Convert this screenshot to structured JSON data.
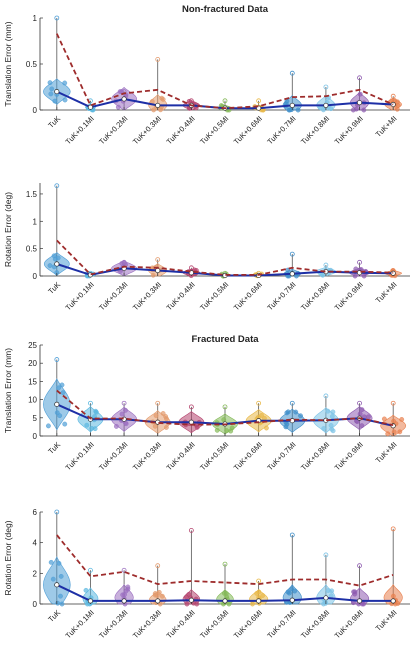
{
  "chart_data": [
    {
      "type": "violin",
      "title": "Non-fractured Data",
      "ylabel": "Translation Error (mm)",
      "xlabel": "",
      "ylim": [
        0,
        1
      ],
      "yticks": [
        0,
        0.5,
        1
      ],
      "grid": false,
      "categories": [
        "TuK",
        "TuK+0.1MI",
        "TuK+0.2MI",
        "TuK+0.3MI",
        "TuK+0.4MI",
        "TuK+0.5MI",
        "TuK+0.6MI",
        "TuK+0.7MI",
        "TuK+0.8MI",
        "TuK+0.9MI",
        "TuK+MI"
      ],
      "series": [
        {
          "style": "solid-blue",
          "values": [
            0.2,
            0.03,
            0.12,
            0.05,
            0.05,
            0.02,
            0.02,
            0.05,
            0.05,
            0.08,
            0.06
          ]
        },
        {
          "style": "dashed-red",
          "values": [
            0.83,
            0.05,
            0.18,
            0.22,
            0.05,
            0.02,
            0.04,
            0.14,
            0.15,
            0.22,
            0.06
          ]
        }
      ],
      "whisker_max": [
        1.0,
        0.1,
        0.2,
        0.55,
        0.1,
        0.1,
        0.1,
        0.4,
        0.25,
        0.35,
        0.15
      ],
      "violin_width": [
        0.8,
        0.3,
        0.75,
        0.55,
        0.5,
        0.4,
        0.4,
        0.55,
        0.55,
        0.55,
        0.5
      ],
      "violin_height": [
        0.2,
        0.06,
        0.18,
        0.16,
        0.08,
        0.05,
        0.05,
        0.15,
        0.15,
        0.16,
        0.1
      ]
    },
    {
      "type": "violin",
      "title": "",
      "ylabel": "Rotation Error (deg)",
      "xlabel": "",
      "ylim": [
        0,
        1.7
      ],
      "yticks": [
        0,
        0.5,
        1,
        1.5
      ],
      "grid": false,
      "categories": [
        "TuK",
        "TuK+0.1MI",
        "TuK+0.2MI",
        "TuK+0.3MI",
        "TuK+0.4MI",
        "TuK+0.5MI",
        "TuK+0.6MI",
        "TuK+0.7MI",
        "TuK+0.8MI",
        "TuK+0.9MI",
        "TuK+MI"
      ],
      "series": [
        {
          "style": "solid-blue",
          "values": [
            0.22,
            0.02,
            0.14,
            0.1,
            0.06,
            0.01,
            0.01,
            0.04,
            0.08,
            0.06,
            0.05
          ]
        },
        {
          "style": "dashed-red",
          "values": [
            0.65,
            0.03,
            0.17,
            0.15,
            0.08,
            0.02,
            0.02,
            0.15,
            0.08,
            0.08,
            0.06
          ]
        }
      ],
      "whisker_max": [
        1.65,
        0.05,
        0.25,
        0.3,
        0.15,
        0.05,
        0.05,
        0.4,
        0.2,
        0.25,
        0.1
      ],
      "violin_width": [
        0.75,
        0.3,
        0.75,
        0.55,
        0.5,
        0.4,
        0.4,
        0.5,
        0.6,
        0.6,
        0.5
      ],
      "violin_height": [
        0.3,
        0.05,
        0.2,
        0.18,
        0.1,
        0.04,
        0.04,
        0.12,
        0.12,
        0.12,
        0.08
      ]
    },
    {
      "type": "violin",
      "title": "Fractured Data",
      "ylabel": "Translation Error (mm)",
      "xlabel": "",
      "ylim": [
        0,
        25
      ],
      "yticks": [
        0,
        5,
        10,
        15,
        20,
        25
      ],
      "grid": false,
      "categories": [
        "TuK",
        "TuK+0.1MI",
        "TuK+0.2MI",
        "TuK+0.3MI",
        "TuK+0.4MI",
        "TuK+0.5MI",
        "TuK+0.6MI",
        "TuK+0.7MI",
        "TuK+0.8MI",
        "TuK+0.9MI",
        "TuK+MI"
      ],
      "series": [
        {
          "style": "solid-blue",
          "values": [
            8.7,
            4.6,
            4.6,
            3.8,
            3.8,
            3.3,
            4.2,
            4.2,
            4.3,
            4.9,
            2.8
          ]
        },
        {
          "style": "dashed-red",
          "values": [
            12.5,
            4.8,
            4.8,
            3.6,
            3.1,
            3.2,
            3.8,
            4.5,
            4.3,
            4.9,
            3.0
          ]
        }
      ],
      "whisker_max": [
        21,
        9,
        9,
        9,
        8,
        8,
        9,
        9,
        11,
        9,
        9
      ],
      "violin_width": [
        0.8,
        0.75,
        0.75,
        0.75,
        0.75,
        0.75,
        0.75,
        0.75,
        0.75,
        0.75,
        0.75
      ],
      "violin_height": [
        10,
        5,
        4.8,
        4.5,
        4.2,
        4,
        4.4,
        4.6,
        5,
        4.6,
        4.2
      ]
    },
    {
      "type": "violin",
      "title": "",
      "ylabel": "Rotation Error (deg)",
      "xlabel": "",
      "ylim": [
        0,
        6
      ],
      "yticks": [
        0,
        2,
        4,
        6
      ],
      "grid": false,
      "categories": [
        "TuK",
        "TuK+0.1MI",
        "TuK+0.2MI",
        "TuK+0.3MI",
        "TuK+0.4MI",
        "TuK+0.5MI",
        "TuK+0.6MI",
        "TuK+0.7MI",
        "TuK+0.8MI",
        "TuK+0.9MI",
        "TuK+MI"
      ],
      "series": [
        {
          "style": "solid-blue",
          "values": [
            1.25,
            0.2,
            0.2,
            0.2,
            0.25,
            0.2,
            0.2,
            0.25,
            0.4,
            0.2,
            0.2
          ]
        },
        {
          "style": "dashed-red",
          "values": [
            4.5,
            1.8,
            2.1,
            1.3,
            1.5,
            1.4,
            1.3,
            1.6,
            1.6,
            1.2,
            1.9
          ]
        }
      ],
      "whisker_max": [
        6,
        2.2,
        2.2,
        2.5,
        4.8,
        2.6,
        1.5,
        4.5,
        3.2,
        2.5,
        4.9
      ],
      "violin_width": [
        0.8,
        0.45,
        0.55,
        0.5,
        0.5,
        0.5,
        0.55,
        0.55,
        0.55,
        0.55,
        0.55
      ],
      "violin_height": [
        2.6,
        1.0,
        1.2,
        0.8,
        0.9,
        0.9,
        0.9,
        1.2,
        1.2,
        1.0,
        1.2
      ]
    }
  ],
  "colors": {
    "violins": [
      "#4f9ed6",
      "#5bb8e0",
      "#9b6fc0",
      "#e39a6c",
      "#b5446e",
      "#84b957",
      "#e8b847",
      "#3f8fca",
      "#7cc3e6",
      "#8e5bb0",
      "#e8804f"
    ],
    "solid_line": "#1d2fa6",
    "dashed_line": "#9e2c2c",
    "axis": "#333333",
    "whisker": "#555555"
  }
}
